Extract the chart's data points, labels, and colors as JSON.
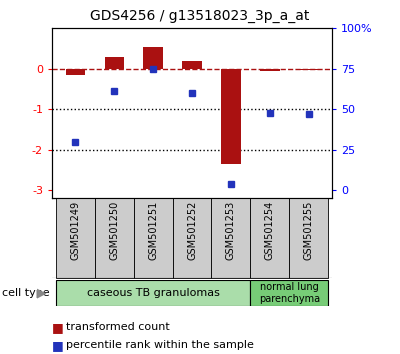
{
  "title": "GDS4256 / g13518023_3p_a_at",
  "samples": [
    "GSM501249",
    "GSM501250",
    "GSM501251",
    "GSM501252",
    "GSM501253",
    "GSM501254",
    "GSM501255"
  ],
  "transformed_count": [
    -0.15,
    0.28,
    0.55,
    0.18,
    -2.35,
    -0.05,
    -0.03
  ],
  "percentile_rank_left": [
    -1.8,
    -0.55,
    0.0,
    -0.6,
    -2.85,
    -1.1,
    -1.12
  ],
  "ylim": [
    -3.2,
    1.0
  ],
  "yticks_left": [
    0,
    -1,
    -2,
    -3
  ],
  "yticks_right_vals": [
    "100%",
    "75",
    "50",
    "25",
    "0"
  ],
  "yticks_right_pos": [
    1.0,
    0.0,
    -1.0,
    -2.0,
    -3.0
  ],
  "bar_color": "#aa1111",
  "dot_color": "#2233bb",
  "dotted_lines": [
    -1.0,
    -2.0
  ],
  "bar_width": 0.5,
  "ct1_color": "#aaddaa",
  "ct2_color": "#77cc77",
  "sample_box_color": "#cccccc",
  "legend_red_label": "transformed count",
  "legend_blue_label": "percentile rank within the sample",
  "cell_type_label": "cell type"
}
